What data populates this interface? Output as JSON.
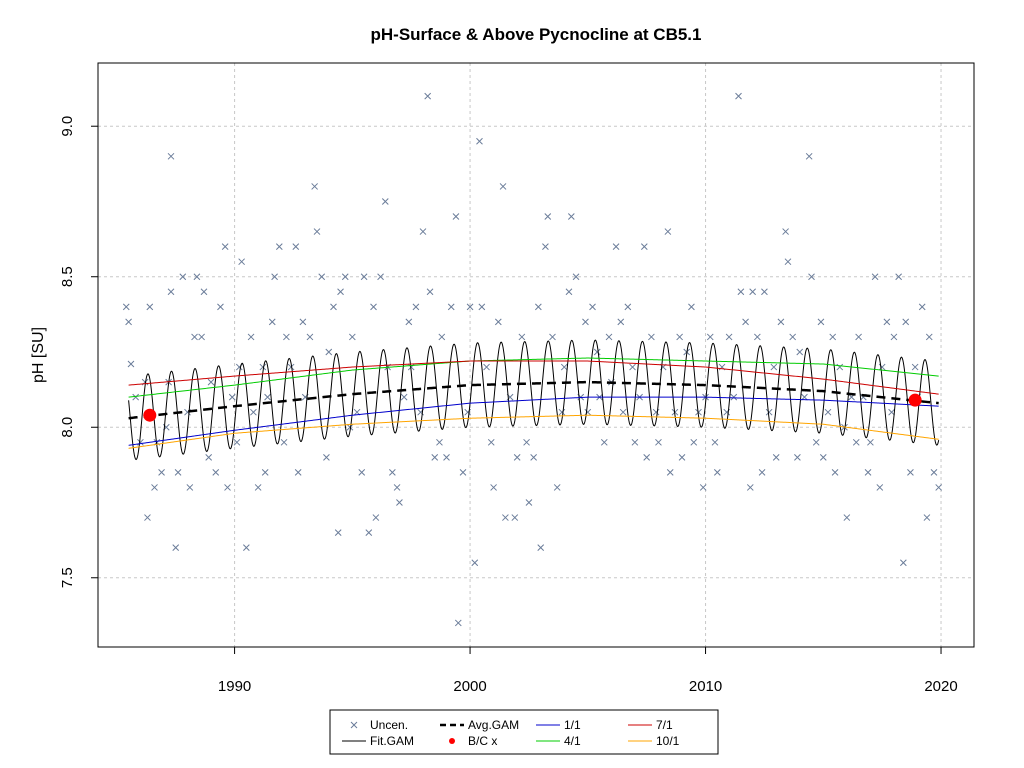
{
  "chart_data": {
    "type": "scatter",
    "title": "pH-Surface & Above Pycnocline at CB5.1",
    "xlabel": "",
    "ylabel": "pH [SU]",
    "xlim": [
      1984.2,
      2021.4
    ],
    "ylim": [
      7.27,
      9.21
    ],
    "xticks": [
      1990,
      2000,
      2010,
      2020
    ],
    "yticks": [
      7.5,
      8.0,
      8.5,
      9.0
    ],
    "xtick_labels": [
      "1990",
      "2000",
      "2010",
      "2020"
    ],
    "ytick_labels": [
      "7.5",
      "8.0",
      "8.5",
      "9.0"
    ],
    "grid": true,
    "legend_position": "bottom-center",
    "legend": [
      {
        "label": "Uncen.",
        "kind": "x-marker",
        "color": "#6a7c99"
      },
      {
        "label": "Avg.GAM",
        "kind": "dashed-line",
        "color": "#000000"
      },
      {
        "label": "1/1",
        "kind": "line",
        "color": "#0000cc"
      },
      {
        "label": "7/1",
        "kind": "line",
        "color": "#cc0000"
      },
      {
        "label": "Fit.GAM",
        "kind": "line",
        "color": "#000000"
      },
      {
        "label": "B/C x",
        "kind": "dot",
        "color": "#ff0000"
      },
      {
        "label": "4/1",
        "kind": "line",
        "color": "#00cc00"
      },
      {
        "label": "10/1",
        "kind": "line",
        "color": "#ffa500"
      }
    ],
    "series": [
      {
        "name": "Avg.GAM",
        "x": [
          1985.5,
          1990,
          1995,
          2000,
          2005,
          2010,
          2015,
          2019.9
        ],
        "values": [
          8.03,
          8.07,
          8.11,
          8.14,
          8.15,
          8.14,
          8.12,
          8.08
        ]
      },
      {
        "name": "1/1",
        "x": [
          1985.5,
          1990,
          1995,
          2000,
          2005,
          2010,
          2015,
          2019.9
        ],
        "values": [
          7.94,
          7.99,
          8.04,
          8.08,
          8.1,
          8.1,
          8.09,
          8.07
        ]
      },
      {
        "name": "4/1",
        "x": [
          1985.5,
          1990,
          1995,
          2000,
          2005,
          2010,
          2015,
          2019.9
        ],
        "values": [
          8.1,
          8.14,
          8.19,
          8.22,
          8.23,
          8.22,
          8.21,
          8.17
        ]
      },
      {
        "name": "7/1",
        "x": [
          1985.5,
          1990,
          1995,
          2000,
          2005,
          2010,
          2015,
          2019.9
        ],
        "values": [
          8.14,
          8.17,
          8.2,
          8.22,
          8.22,
          8.2,
          8.16,
          8.11
        ]
      },
      {
        "name": "10/1",
        "x": [
          1985.5,
          1990,
          1995,
          2000,
          2005,
          2010,
          2015,
          2019.9
        ],
        "values": [
          7.93,
          7.98,
          8.01,
          8.03,
          8.04,
          8.03,
          8.01,
          7.96
        ]
      }
    ],
    "fit_gam": {
      "name": "Fit.GAM",
      "start_year": 1985.5,
      "end_year": 2019.9,
      "amplitude": 0.14,
      "period_years": 1
    },
    "bc_points": [
      {
        "x": 1986.4,
        "y": 8.04
      },
      {
        "x": 2018.9,
        "y": 8.09
      }
    ],
    "uncen_points": [
      [
        1985.4,
        8.4
      ],
      [
        1985.5,
        8.35
      ],
      [
        1985.6,
        8.21
      ],
      [
        1985.8,
        8.1
      ],
      [
        1986.0,
        7.95
      ],
      [
        1986.2,
        8.15
      ],
      [
        1986.3,
        7.7
      ],
      [
        1986.4,
        8.4
      ],
      [
        1986.6,
        7.8
      ],
      [
        1986.7,
        7.95
      ],
      [
        1986.9,
        7.85
      ],
      [
        1987.1,
        8.0
      ],
      [
        1987.2,
        8.15
      ],
      [
        1987.3,
        8.45
      ],
      [
        1987.3,
        8.9
      ],
      [
        1987.5,
        7.6
      ],
      [
        1987.6,
        7.85
      ],
      [
        1987.8,
        8.5
      ],
      [
        1988.0,
        8.05
      ],
      [
        1988.1,
        7.8
      ],
      [
        1988.3,
        8.3
      ],
      [
        1988.4,
        8.5
      ],
      [
        1988.6,
        8.3
      ],
      [
        1988.7,
        8.45
      ],
      [
        1988.9,
        7.9
      ],
      [
        1989.0,
        8.15
      ],
      [
        1989.2,
        7.85
      ],
      [
        1989.4,
        8.4
      ],
      [
        1989.6,
        8.6
      ],
      [
        1989.7,
        7.8
      ],
      [
        1989.9,
        8.1
      ],
      [
        1990.1,
        7.95
      ],
      [
        1990.2,
        8.2
      ],
      [
        1990.3,
        8.55
      ],
      [
        1990.5,
        7.6
      ],
      [
        1990.7,
        8.3
      ],
      [
        1990.8,
        8.05
      ],
      [
        1991.0,
        7.8
      ],
      [
        1991.2,
        8.2
      ],
      [
        1991.3,
        7.85
      ],
      [
        1991.4,
        8.1
      ],
      [
        1991.6,
        8.35
      ],
      [
        1991.7,
        8.5
      ],
      [
        1991.9,
        8.6
      ],
      [
        1992.1,
        7.95
      ],
      [
        1992.2,
        8.3
      ],
      [
        1992.4,
        8.2
      ],
      [
        1992.6,
        8.6
      ],
      [
        1992.7,
        7.85
      ],
      [
        1992.9,
        8.35
      ],
      [
        1993.0,
        8.1
      ],
      [
        1993.2,
        8.3
      ],
      [
        1993.4,
        8.8
      ],
      [
        1993.5,
        8.65
      ],
      [
        1993.7,
        8.5
      ],
      [
        1993.9,
        7.9
      ],
      [
        1994.0,
        8.25
      ],
      [
        1994.2,
        8.4
      ],
      [
        1994.4,
        7.65
      ],
      [
        1994.5,
        8.45
      ],
      [
        1994.7,
        8.5
      ],
      [
        1994.9,
        8.0
      ],
      [
        1995.0,
        8.3
      ],
      [
        1995.2,
        8.05
      ],
      [
        1995.4,
        7.85
      ],
      [
        1995.5,
        8.5
      ],
      [
        1995.7,
        7.65
      ],
      [
        1995.9,
        8.4
      ],
      [
        1996.0,
        7.7
      ],
      [
        1996.2,
        8.5
      ],
      [
        1996.4,
        8.75
      ],
      [
        1996.5,
        8.2
      ],
      [
        1996.7,
        7.85
      ],
      [
        1996.9,
        7.8
      ],
      [
        1997.0,
        7.75
      ],
      [
        1997.2,
        8.1
      ],
      [
        1997.4,
        8.35
      ],
      [
        1997.5,
        8.2
      ],
      [
        1997.7,
        8.4
      ],
      [
        1997.9,
        8.05
      ],
      [
        1998.0,
        8.65
      ],
      [
        1998.2,
        9.1
      ],
      [
        1998.3,
        8.45
      ],
      [
        1998.5,
        7.9
      ],
      [
        1998.7,
        7.95
      ],
      [
        1998.8,
        8.3
      ],
      [
        1999.0,
        7.9
      ],
      [
        1999.2,
        8.4
      ],
      [
        1999.4,
        8.7
      ],
      [
        1999.5,
        7.35
      ],
      [
        1999.7,
        7.85
      ],
      [
        1999.9,
        8.05
      ],
      [
        2000.0,
        8.4
      ],
      [
        2000.2,
        7.55
      ],
      [
        2000.4,
        8.95
      ],
      [
        2000.5,
        8.4
      ],
      [
        2000.7,
        8.2
      ],
      [
        2000.9,
        7.95
      ],
      [
        2001.0,
        7.8
      ],
      [
        2001.2,
        8.35
      ],
      [
        2001.4,
        8.8
      ],
      [
        2001.5,
        7.7
      ],
      [
        2001.7,
        8.1
      ],
      [
        2001.9,
        7.7
      ],
      [
        2002.0,
        7.9
      ],
      [
        2002.2,
        8.3
      ],
      [
        2002.4,
        7.95
      ],
      [
        2002.5,
        7.75
      ],
      [
        2002.7,
        7.9
      ],
      [
        2002.9,
        8.4
      ],
      [
        2003.0,
        7.6
      ],
      [
        2003.2,
        8.6
      ],
      [
        2003.3,
        8.7
      ],
      [
        2003.5,
        8.3
      ],
      [
        2003.7,
        7.8
      ],
      [
        2003.9,
        8.05
      ],
      [
        2004.0,
        8.2
      ],
      [
        2004.2,
        8.45
      ],
      [
        2004.3,
        8.7
      ],
      [
        2004.5,
        8.5
      ],
      [
        2004.7,
        8.1
      ],
      [
        2004.9,
        8.35
      ],
      [
        2005.0,
        8.05
      ],
      [
        2005.2,
        8.4
      ],
      [
        2005.4,
        8.25
      ],
      [
        2005.5,
        8.1
      ],
      [
        2005.7,
        7.95
      ],
      [
        2005.9,
        8.3
      ],
      [
        2006.0,
        8.15
      ],
      [
        2006.2,
        8.6
      ],
      [
        2006.4,
        8.35
      ],
      [
        2006.5,
        8.05
      ],
      [
        2006.7,
        8.4
      ],
      [
        2006.9,
        8.2
      ],
      [
        2007.0,
        7.95
      ],
      [
        2007.2,
        8.1
      ],
      [
        2007.4,
        8.6
      ],
      [
        2007.5,
        7.9
      ],
      [
        2007.7,
        8.3
      ],
      [
        2007.9,
        8.05
      ],
      [
        2008.0,
        7.95
      ],
      [
        2008.2,
        8.2
      ],
      [
        2008.4,
        8.65
      ],
      [
        2008.5,
        7.85
      ],
      [
        2008.7,
        8.05
      ],
      [
        2008.9,
        8.3
      ],
      [
        2009.0,
        7.9
      ],
      [
        2009.2,
        8.25
      ],
      [
        2009.4,
        8.4
      ],
      [
        2009.5,
        7.95
      ],
      [
        2009.7,
        8.05
      ],
      [
        2009.9,
        7.8
      ],
      [
        2010.0,
        8.1
      ],
      [
        2010.2,
        8.3
      ],
      [
        2010.4,
        7.95
      ],
      [
        2010.5,
        7.85
      ],
      [
        2010.7,
        8.2
      ],
      [
        2010.9,
        8.05
      ],
      [
        2011.0,
        8.3
      ],
      [
        2011.2,
        8.1
      ],
      [
        2011.4,
        9.1
      ],
      [
        2011.5,
        8.45
      ],
      [
        2011.7,
        8.35
      ],
      [
        2011.9,
        7.8
      ],
      [
        2012.0,
        8.45
      ],
      [
        2012.2,
        8.3
      ],
      [
        2012.4,
        7.85
      ],
      [
        2012.5,
        8.45
      ],
      [
        2012.7,
        8.05
      ],
      [
        2012.9,
        8.2
      ],
      [
        2013.0,
        7.9
      ],
      [
        2013.2,
        8.35
      ],
      [
        2013.4,
        8.65
      ],
      [
        2013.5,
        8.55
      ],
      [
        2013.7,
        8.3
      ],
      [
        2013.9,
        7.9
      ],
      [
        2014.0,
        8.25
      ],
      [
        2014.2,
        8.1
      ],
      [
        2014.4,
        8.9
      ],
      [
        2014.5,
        8.5
      ],
      [
        2014.7,
        7.95
      ],
      [
        2014.9,
        8.35
      ],
      [
        2015.0,
        7.9
      ],
      [
        2015.2,
        8.05
      ],
      [
        2015.4,
        8.3
      ],
      [
        2015.5,
        7.85
      ],
      [
        2015.7,
        8.2
      ],
      [
        2015.9,
        8.0
      ],
      [
        2016.0,
        7.7
      ],
      [
        2016.2,
        8.1
      ],
      [
        2016.4,
        7.95
      ],
      [
        2016.5,
        8.3
      ],
      [
        2016.7,
        8.1
      ],
      [
        2016.9,
        7.85
      ],
      [
        2017.0,
        7.95
      ],
      [
        2017.2,
        8.5
      ],
      [
        2017.4,
        7.8
      ],
      [
        2017.5,
        8.2
      ],
      [
        2017.7,
        8.35
      ],
      [
        2017.9,
        8.05
      ],
      [
        2018.0,
        8.3
      ],
      [
        2018.2,
        8.5
      ],
      [
        2018.4,
        7.55
      ],
      [
        2018.5,
        8.35
      ],
      [
        2018.7,
        7.85
      ],
      [
        2018.9,
        8.2
      ],
      [
        2019.0,
        8.1
      ],
      [
        2019.2,
        8.4
      ],
      [
        2019.4,
        7.7
      ],
      [
        2019.5,
        8.3
      ],
      [
        2019.7,
        7.85
      ],
      [
        2019.9,
        7.8
      ]
    ]
  }
}
